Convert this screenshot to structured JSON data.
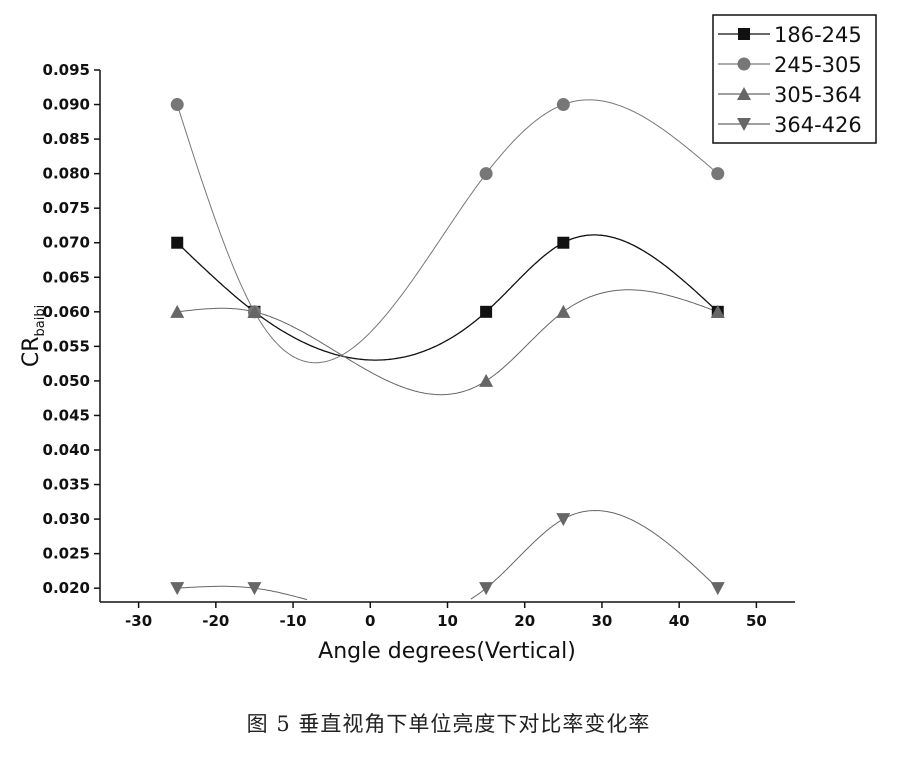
{
  "caption": "图 5 垂直视角下单位亮度下对比率变化率",
  "chart_data": {
    "type": "line",
    "title": "",
    "xlabel": "Angle degrees(Vertical)",
    "ylabel_main": "CR",
    "ylabel_sub": "baibi",
    "xlim": [
      -35,
      55
    ],
    "ylim": [
      0.018,
      0.095
    ],
    "xticks": [
      -30,
      -20,
      -10,
      0,
      10,
      20,
      30,
      40,
      50
    ],
    "yticks": [
      0.02,
      0.025,
      0.03,
      0.035,
      0.04,
      0.045,
      0.05,
      0.055,
      0.06,
      0.065,
      0.07,
      0.075,
      0.08,
      0.085,
      0.09,
      0.095
    ],
    "grid": false,
    "smooth": true,
    "legend_position": "top-right",
    "x": [
      -25,
      -15,
      15,
      25,
      45
    ],
    "series": [
      {
        "name": "186-245",
        "marker": "square",
        "color": "#111111",
        "values": [
          0.07,
          0.06,
          0.06,
          0.07,
          0.06
        ]
      },
      {
        "name": "245-305",
        "marker": "circle",
        "color": "#777777",
        "values": [
          0.09,
          0.06,
          0.08,
          0.09,
          0.08
        ]
      },
      {
        "name": "305-364",
        "marker": "triangle-up",
        "color": "#666666",
        "values": [
          0.06,
          0.06,
          0.05,
          0.06,
          0.06
        ]
      },
      {
        "name": "364-426",
        "marker": "triangle-down",
        "color": "#666666",
        "values": [
          0.02,
          0.02,
          0.02,
          0.03,
          0.02
        ]
      }
    ]
  }
}
